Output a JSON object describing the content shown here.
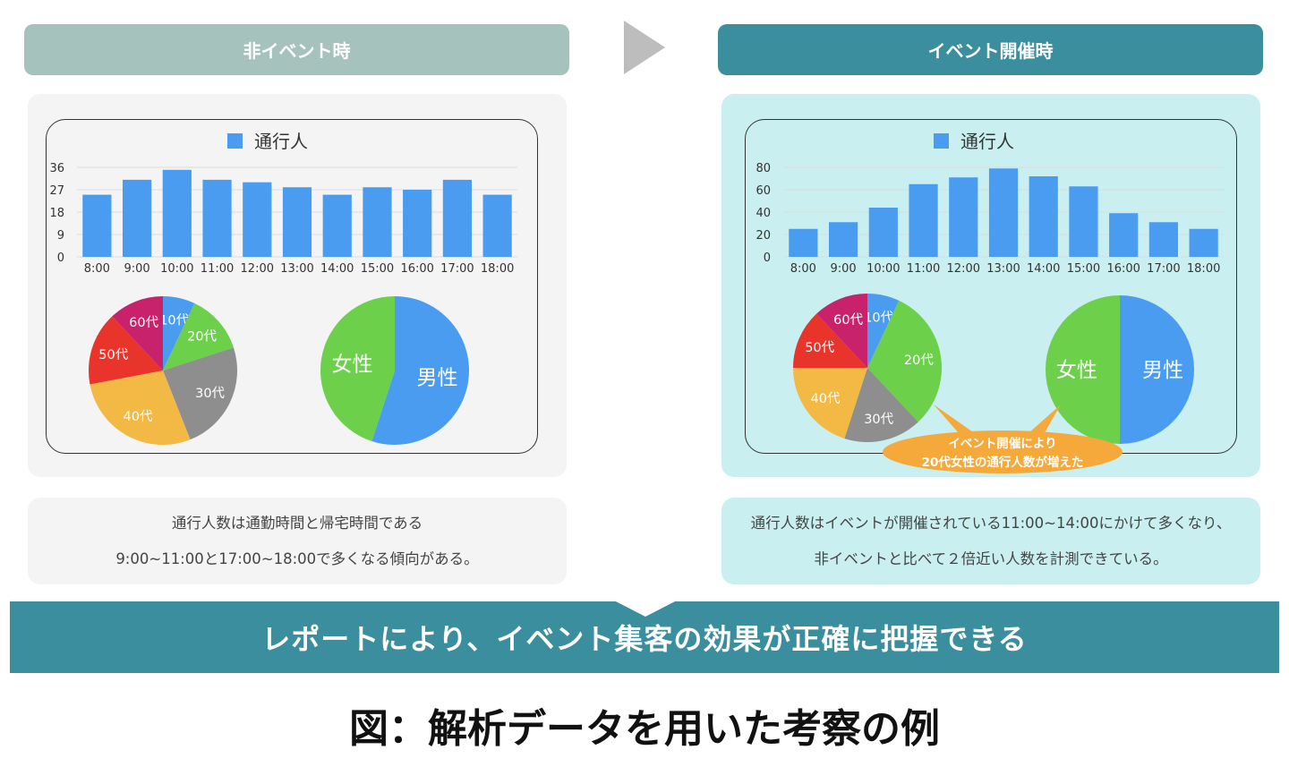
{
  "left": {
    "header": "非イベント時",
    "caption_line1": "通行人数は通勤時間と帰宅時間である",
    "caption_line2": "9:00~11:00と17:00~18:00で多くなる傾向がある。"
  },
  "right": {
    "header": "イベント開催時",
    "caption_line1": "通行人数はイベントが開催されている11:00~14:00にかけて多くなり、",
    "caption_line2": "非イベントと比べて２倍近い人数を計測できている。",
    "callout_line1": "イベント開催により",
    "callout_line2": "20代女性の通行人数が増えた"
  },
  "banner": "レポートにより、イベント集客の効果が正確に把握できる",
  "figure_title": "図：解析データを用いた考察の例",
  "colors": {
    "bar": "#4a9cf0",
    "male": "#4a9cf0",
    "female": "#6cd04a",
    "callout": "#f4a93a",
    "header_left": "#a6c2bd",
    "header_right": "#3b8e9d"
  },
  "chart_data": [
    {
      "type": "bar",
      "legend": "通行人",
      "categories": [
        "8:00",
        "9:00",
        "10:00",
        "11:00",
        "12:00",
        "13:00",
        "14:00",
        "15:00",
        "16:00",
        "17:00",
        "18:00"
      ],
      "series": [
        {
          "name": "通行人",
          "values": [
            25,
            31,
            35,
            31,
            30,
            28,
            25,
            28,
            27,
            31,
            25
          ]
        }
      ],
      "yticks": [
        0,
        9,
        18,
        27,
        36
      ],
      "ylim": [
        0,
        36
      ],
      "grid": true
    },
    {
      "type": "pie",
      "labels": [
        "10代",
        "20代",
        "30代",
        "40代",
        "50代",
        "60代"
      ],
      "values": [
        7,
        13,
        24,
        28,
        16,
        12
      ],
      "colors": [
        "#4a9cf0",
        "#6cd04a",
        "#8e8e8e",
        "#f2b944",
        "#e8342b",
        "#c7226b"
      ]
    },
    {
      "type": "pie",
      "labels": [
        "男性",
        "女性"
      ],
      "values": [
        55,
        45
      ],
      "colors": [
        "#4a9cf0",
        "#6cd04a"
      ]
    },
    {
      "type": "bar",
      "legend": "通行人",
      "categories": [
        "8:00",
        "9:00",
        "10:00",
        "11:00",
        "12:00",
        "13:00",
        "14:00",
        "15:00",
        "16:00",
        "17:00",
        "18:00"
      ],
      "series": [
        {
          "name": "通行人",
          "values": [
            25,
            31,
            44,
            65,
            71,
            79,
            72,
            63,
            39,
            31,
            25
          ]
        }
      ],
      "yticks": [
        0,
        20,
        40,
        60,
        80
      ],
      "ylim": [
        0,
        80
      ],
      "grid": true
    },
    {
      "type": "pie",
      "labels": [
        "10代",
        "20代",
        "30代",
        "40代",
        "50代",
        "60代"
      ],
      "values": [
        7,
        31,
        17,
        20,
        13,
        12
      ],
      "colors": [
        "#4a9cf0",
        "#6cd04a",
        "#8e8e8e",
        "#f2b944",
        "#e8342b",
        "#c7226b"
      ]
    },
    {
      "type": "pie",
      "labels": [
        "男性",
        "女性"
      ],
      "values": [
        50,
        50
      ],
      "colors": [
        "#4a9cf0",
        "#6cd04a"
      ]
    }
  ]
}
